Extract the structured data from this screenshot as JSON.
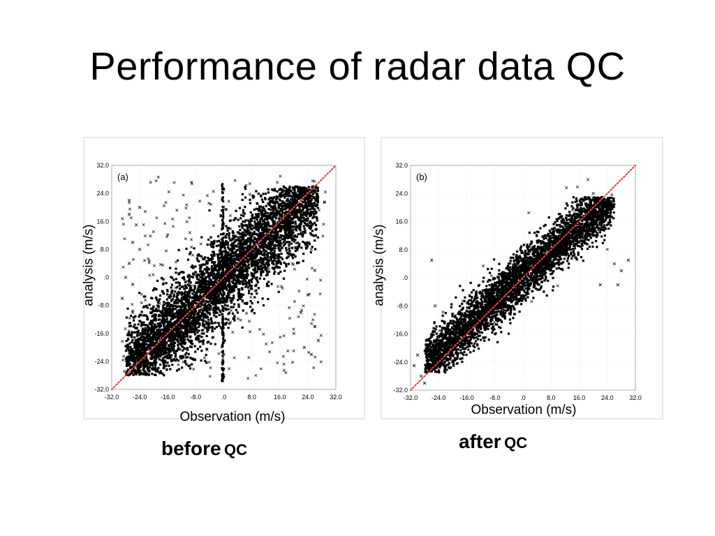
{
  "slide": {
    "title": "Performance of radar data QC"
  },
  "captions": [
    {
      "word": "before",
      "suffix": "QC"
    },
    {
      "word": "after",
      "suffix": "QC"
    }
  ],
  "colors": {
    "points": "#000000",
    "diagonal": "#e8413a",
    "frame": "#d0d0d0",
    "grid": "#d8d8d8"
  },
  "chart_data": [
    {
      "type": "scatter",
      "panel_label": "(a)",
      "xlabel": "Observation (m/s)",
      "ylabel": "analysis (m/s)",
      "xlim": [
        -32,
        32
      ],
      "ylim": [
        -32,
        32
      ],
      "ticks": [
        -32,
        -24,
        -16,
        -8,
        0,
        8,
        16,
        24,
        32
      ],
      "tick_labels": [
        "-32.0",
        "-24.0",
        "-16.0",
        "-8.0",
        ".0",
        "8.0",
        "16.0",
        "24.0",
        "32.0"
      ],
      "reference_line": "y = x",
      "grid": true,
      "cluster": {
        "x_range": [
          -28,
          27
        ],
        "y_range": [
          -28,
          26
        ],
        "correlation": "positive, wide spread"
      },
      "outliers": [
        [
          -27,
          22
        ],
        [
          -27,
          18
        ],
        [
          -26,
          10
        ],
        [
          -27,
          4
        ],
        [
          -26,
          -2
        ],
        [
          -25,
          15
        ],
        [
          -24,
          20
        ],
        [
          -28,
          0
        ],
        [
          -26,
          -10
        ],
        [
          -24,
          8
        ],
        [
          -29,
          -6
        ],
        [
          -25,
          -20
        ],
        [
          0,
          25
        ],
        [
          0,
          20
        ],
        [
          0,
          15
        ],
        [
          0,
          -22
        ],
        [
          0,
          -28
        ],
        [
          0,
          -18
        ],
        [
          23,
          -20
        ],
        [
          25,
          -22
        ],
        [
          26,
          -14
        ],
        [
          22,
          -10
        ],
        [
          24,
          -5
        ],
        [
          27,
          -18
        ],
        [
          20,
          -16
        ],
        [
          26,
          2
        ],
        [
          25,
          8
        ]
      ]
    },
    {
      "type": "scatter",
      "panel_label": "(b)",
      "xlabel": "Observation (m/s)",
      "ylabel": "analysis (m/s)",
      "xlim": [
        -32,
        32
      ],
      "ylim": [
        -32,
        32
      ],
      "ticks": [
        -32,
        -24,
        -16,
        -8,
        0,
        8,
        16,
        24,
        32
      ],
      "tick_labels": [
        "-32.0",
        "-24.0",
        "-16.0",
        "-8.0",
        ".0",
        "8.0",
        "16.0",
        "24.0",
        "32.0"
      ],
      "reference_line": "y = x",
      "grid": true,
      "cluster": {
        "x_range": [
          -28,
          26
        ],
        "y_range": [
          -27,
          23
        ],
        "correlation": "positive, narrow spread"
      },
      "outliers": [
        [
          -30,
          -22
        ],
        [
          -31,
          -25
        ],
        [
          -29,
          -28
        ],
        [
          -25,
          -8
        ],
        [
          -26,
          5
        ],
        [
          -28,
          -30
        ],
        [
          30,
          5
        ],
        [
          28,
          2
        ],
        [
          26,
          4
        ],
        [
          27,
          -2
        ],
        [
          22,
          -2
        ],
        [
          24,
          20
        ],
        [
          20,
          24
        ]
      ]
    }
  ]
}
